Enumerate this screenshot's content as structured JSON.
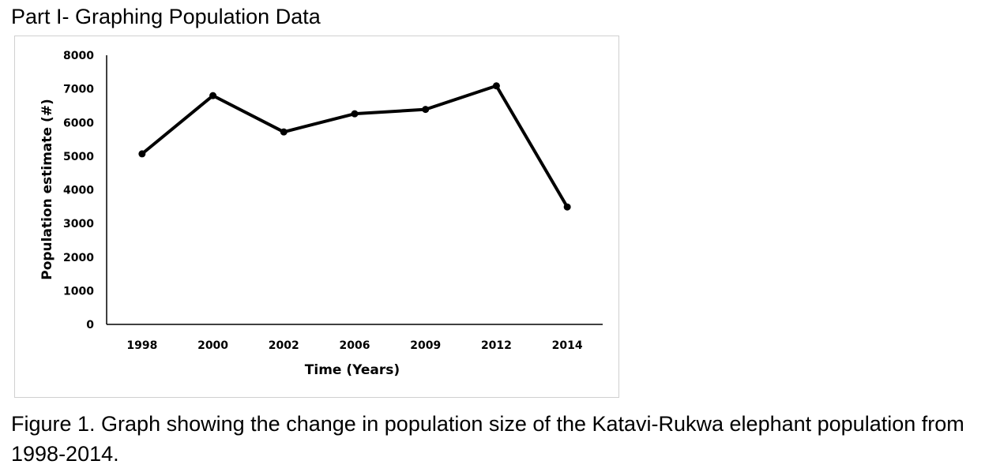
{
  "heading": "Part I- Graphing Population Data",
  "caption": "Figure 1. Graph showing the change in population size of the Katavi-Rukwa elephant population from 1998-2014.",
  "colors": {
    "line": "#000000",
    "frame": "#d0d0d0",
    "axis": "#000000"
  },
  "chart_data": {
    "type": "line",
    "categories": [
      "1998",
      "2000",
      "2002",
      "2006",
      "2009",
      "2012",
      "2014"
    ],
    "series": [
      {
        "values": [
          5070,
          6800,
          5720,
          6260,
          6390,
          7090,
          3490
        ]
      }
    ],
    "xlabel": "Time (Years)",
    "ylabel": "Population estimate (#)",
    "ylim": [
      0,
      8000
    ],
    "yticks": [
      "0",
      "1000",
      "2000",
      "3000",
      "4000",
      "5000",
      "6000",
      "7000",
      "8000"
    ],
    "grid": false,
    "legend": "none"
  }
}
